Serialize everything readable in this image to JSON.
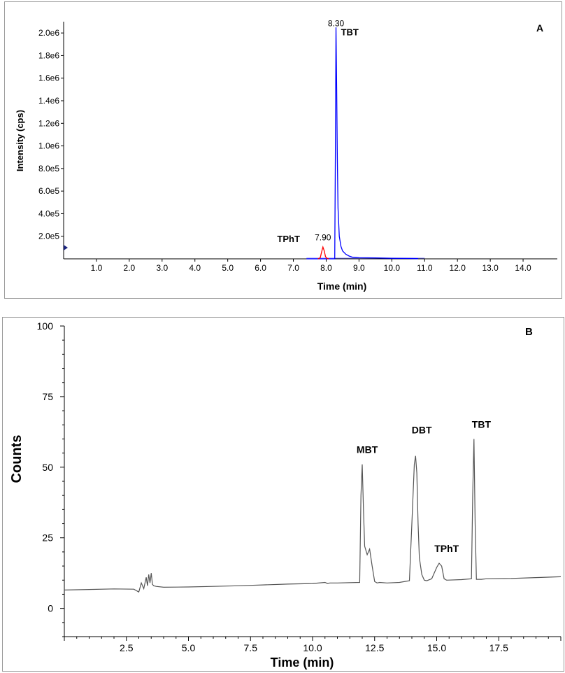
{
  "chart_data": [
    {
      "type": "line",
      "panel_label": "A",
      "xlabel": "Time (min)",
      "ylabel": "Intensity (cps)",
      "xlim": [
        0,
        15
      ],
      "ylim": [
        0,
        2100000
      ],
      "x_ticks": [
        "1.0",
        "2.0",
        "3.0",
        "4.0",
        "5.0",
        "6.0",
        "7.0",
        "8.0",
        "9.0",
        "10.0",
        "11.0",
        "12.0",
        "13.0",
        "14.0"
      ],
      "y_ticks": [
        {
          "value": 200000,
          "label": "2.0e5"
        },
        {
          "value": 400000,
          "label": "4.0e5"
        },
        {
          "value": 600000,
          "label": "6.0e5"
        },
        {
          "value": 800000,
          "label": "8.0e5"
        },
        {
          "value": 1000000,
          "label": "1.0e6"
        },
        {
          "value": 1200000,
          "label": "1.2e6"
        },
        {
          "value": 1400000,
          "label": "1.4e6"
        },
        {
          "value": 1600000,
          "label": "1.6e6"
        },
        {
          "value": 1800000,
          "label": "1.8e6"
        },
        {
          "value": 2000000,
          "label": "2.0e6"
        }
      ],
      "series": [
        {
          "color": "#0000ff",
          "x": [
            7.4,
            8.26,
            8.28,
            8.3,
            8.32,
            8.34,
            8.36,
            8.4,
            8.45,
            8.5,
            8.6,
            8.7,
            8.8,
            9.0,
            9.5,
            10.0,
            10.5,
            10.8
          ],
          "y": [
            0,
            0,
            900000,
            2050000,
            1500000,
            900000,
            450000,
            200000,
            110000,
            70000,
            40000,
            25000,
            15000,
            10000,
            8000,
            5000,
            4000,
            2000
          ]
        },
        {
          "color": "#ff0000",
          "x": [
            7.75,
            7.82,
            7.86,
            7.9,
            7.94,
            7.98,
            8.02,
            8.08
          ],
          "y": [
            0,
            10000,
            60000,
            105000,
            70000,
            20000,
            5000,
            0
          ]
        }
      ],
      "annotations": [
        {
          "text": "8.30",
          "x": 8.3,
          "y": 2060000
        },
        {
          "text": "TBT",
          "x": 8.45,
          "y": 1980000,
          "bold": true
        },
        {
          "text": "7.90",
          "x": 7.9,
          "y": 165000
        },
        {
          "text": "TPhT",
          "x": 7.2,
          "y": 150000,
          "bold": true
        }
      ]
    },
    {
      "type": "line",
      "panel_label": "B",
      "xlabel": "Time (min)",
      "ylabel": "Counts",
      "xlim": [
        0,
        20
      ],
      "ylim": [
        -10,
        100
      ],
      "x_ticks": [
        "2.5",
        "5.0",
        "7.5",
        "10.0",
        "12.5",
        "15.0",
        "17.5"
      ],
      "y_ticks": [
        "0",
        "25",
        "50",
        "75",
        "100"
      ],
      "series": [
        {
          "color": "#555555",
          "x": [
            0,
            1,
            2,
            2.8,
            3.0,
            3.1,
            3.2,
            3.3,
            3.35,
            3.4,
            3.45,
            3.5,
            3.55,
            3.6,
            3.7,
            4,
            5,
            6,
            7,
            8,
            9,
            10,
            10.5,
            10.6,
            10.7,
            11,
            11.9,
            11.95,
            12.0,
            12.05,
            12.1,
            12.2,
            12.3,
            12.35,
            12.4,
            12.5,
            12.6,
            12.7,
            13,
            13.5,
            13.9,
            14.0,
            14.1,
            14.15,
            14.2,
            14.25,
            14.3,
            14.4,
            14.5,
            14.6,
            14.8,
            15.0,
            15.1,
            15.2,
            15.3,
            15.4,
            16.0,
            16.4,
            16.45,
            16.5,
            16.55,
            16.6,
            16.8,
            17,
            18,
            19,
            20
          ],
          "y": [
            6.5,
            6.7,
            6.9,
            6.8,
            5.8,
            9.0,
            7.0,
            11.0,
            8.0,
            12.0,
            9.0,
            12.5,
            8.5,
            8.0,
            7.8,
            7.5,
            7.6,
            7.8,
            8.0,
            8.3,
            8.6,
            8.8,
            9.2,
            8.8,
            9.0,
            9.0,
            9.2,
            40,
            51,
            35,
            22,
            19,
            21,
            18,
            15,
            9.5,
            9.0,
            9.2,
            9.0,
            9.2,
            9.8,
            30,
            51,
            54,
            48,
            30,
            18,
            12,
            10,
            9.8,
            10.5,
            14.5,
            16,
            15,
            10.5,
            10,
            10.2,
            10.5,
            40,
            60,
            30,
            10.3,
            10.3,
            10.5,
            10.6,
            10.9,
            11.2
          ]
        }
      ],
      "annotations": [
        {
          "text": "MBT",
          "x": 12.2,
          "y": 55,
          "bold": true
        },
        {
          "text": "DBT",
          "x": 14.4,
          "y": 62,
          "bold": true
        },
        {
          "text": "TBT",
          "x": 16.8,
          "y": 64,
          "bold": true
        },
        {
          "text": "TPhT",
          "x": 15.4,
          "y": 20,
          "bold": true
        }
      ]
    }
  ]
}
